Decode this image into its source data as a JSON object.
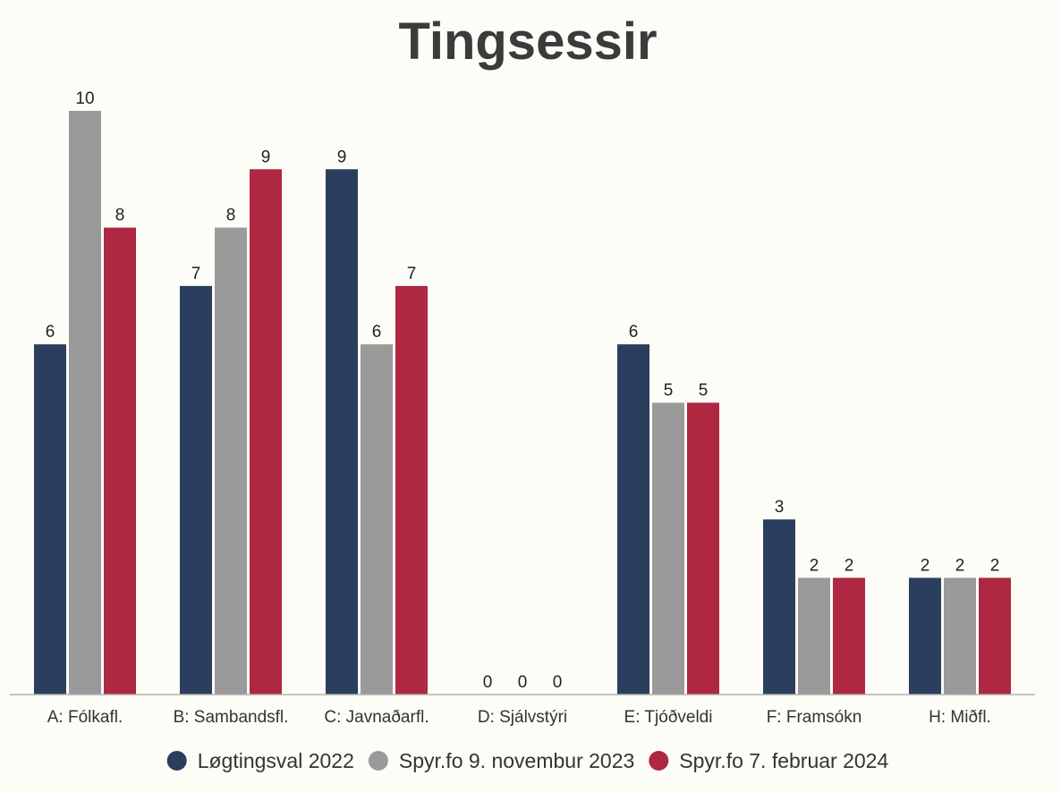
{
  "chart_data": {
    "type": "bar",
    "title": "Tingsessir",
    "categories": [
      "A: Fólkafl.",
      "B: Sambandsfl.",
      "C: Javnaðarfl.",
      "D: Sjálvstýri",
      "E: Tjóðveldi",
      "F: Framsókn",
      "H: Miðfl."
    ],
    "series": [
      {
        "name": "Løgtingsval 2022",
        "color": "#2c3e5e",
        "values": [
          6,
          7,
          9,
          0,
          6,
          3,
          2
        ]
      },
      {
        "name": "Spyr.fo 9. novembur 2023",
        "color": "#9a9a9a",
        "values": [
          10,
          8,
          6,
          0,
          5,
          2,
          2
        ]
      },
      {
        "name": "Spyr.fo 7. februar 2024",
        "color": "#ad2840",
        "values": [
          8,
          9,
          7,
          0,
          5,
          2,
          2
        ]
      }
    ],
    "ylim": [
      0,
      10
    ],
    "grid": false,
    "legend": "bottom",
    "data_labels": true
  }
}
